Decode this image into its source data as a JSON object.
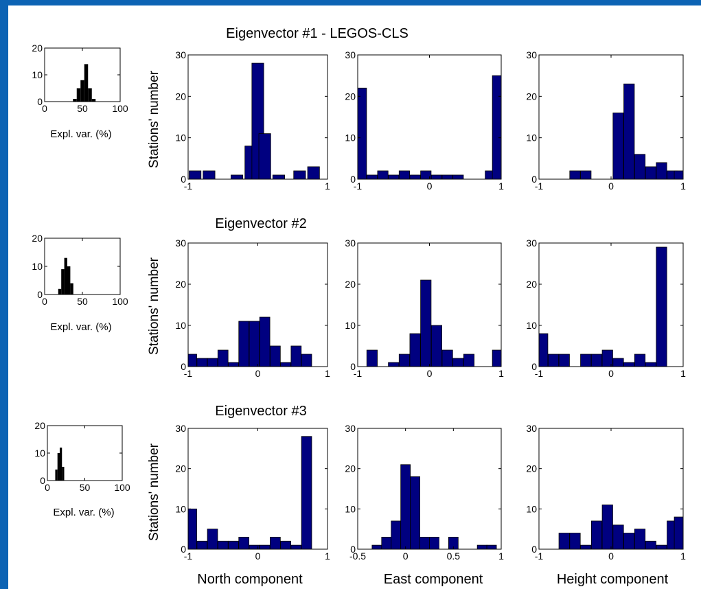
{
  "colors": {
    "bar": "#000080",
    "small_bar": "#000000",
    "axis": "#000000",
    "frame": "#0c63b4",
    "background": "#ffffff"
  },
  "row_titles": [
    "Eigenvector #1 - LEGOS-CLS",
    "Eigenvector #2",
    "Eigenvector #3"
  ],
  "shared_ylabel": "Stations' number",
  "column_xlabels": [
    "North component",
    "East component",
    "Height component"
  ],
  "chart_data": [
    {
      "type": "bar",
      "row": 1,
      "column": "explained variance",
      "xlabel": "Expl. var. (%)",
      "xlim": [
        0,
        100
      ],
      "ylim": [
        0,
        20
      ],
      "xticks": [
        0,
        50,
        100
      ],
      "yticks": [
        0,
        10,
        20
      ],
      "bin_width": 5,
      "x": [
        40,
        45,
        50,
        55,
        60,
        65
      ],
      "values": [
        1,
        5,
        8,
        14,
        5,
        1
      ]
    },
    {
      "type": "bar",
      "row": 1,
      "column": "North component",
      "title": "Eigenvector #1 - LEGOS-CLS",
      "ylabel": "Stations' number",
      "xlim": [
        -1,
        1
      ],
      "ylim": [
        0,
        30
      ],
      "xticks": [
        -1,
        1
      ],
      "yticks": [
        0,
        10,
        20,
        30
      ],
      "x": [
        -0.9,
        -0.7,
        -0.5,
        -0.3,
        -0.1,
        0.0,
        0.1,
        0.3,
        0.5,
        0.6,
        0.8
      ],
      "values": [
        2,
        2,
        0,
        1,
        8,
        28,
        11,
        1,
        0,
        2,
        3
      ]
    },
    {
      "type": "bar",
      "row": 1,
      "column": "East component",
      "xlim": [
        -1,
        1
      ],
      "ylim": [
        0,
        30
      ],
      "xticks": [
        -1,
        0,
        1
      ],
      "yticks": [
        0,
        10,
        20,
        30
      ],
      "x": [
        -0.95,
        -0.8,
        -0.65,
        -0.5,
        -0.35,
        -0.2,
        -0.05,
        0.1,
        0.25,
        0.4,
        0.55,
        0.7,
        0.85,
        0.95
      ],
      "values": [
        22,
        1,
        2,
        1,
        2,
        1,
        2,
        1,
        1,
        1,
        0,
        0,
        2,
        25
      ]
    },
    {
      "type": "bar",
      "row": 1,
      "column": "Height component",
      "xlim": [
        -1,
        1
      ],
      "ylim": [
        0,
        30
      ],
      "xticks": [
        -1,
        0,
        1
      ],
      "yticks": [
        0,
        10,
        20,
        30
      ],
      "x": [
        -0.95,
        -0.8,
        -0.65,
        -0.5,
        -0.35,
        -0.2,
        -0.05,
        0.1,
        0.25,
        0.4,
        0.55,
        0.7,
        0.85,
        0.95
      ],
      "values": [
        0,
        0,
        0,
        2,
        2,
        0,
        0,
        16,
        23,
        6,
        3,
        4,
        2,
        2
      ]
    },
    {
      "type": "bar",
      "row": 2,
      "column": "explained variance",
      "xlabel": "Expl. var. (%)",
      "xlim": [
        0,
        100
      ],
      "ylim": [
        0,
        20
      ],
      "xticks": [
        0,
        50,
        100
      ],
      "yticks": [
        0,
        10,
        20
      ],
      "bin_width": 4,
      "x": [
        20,
        24,
        28,
        32,
        36
      ],
      "values": [
        2,
        9,
        13,
        10,
        4
      ]
    },
    {
      "type": "bar",
      "row": 2,
      "column": "North component",
      "title": "Eigenvector #2",
      "ylabel": "Stations' number",
      "xlim": [
        -1,
        1
      ],
      "ylim": [
        0,
        30
      ],
      "xticks": [
        -1,
        0,
        1
      ],
      "yticks": [
        0,
        10,
        20,
        30
      ],
      "x": [
        -0.95,
        -0.8,
        -0.65,
        -0.5,
        -0.35,
        -0.2,
        -0.05,
        0.1,
        0.25,
        0.4,
        0.55,
        0.7,
        0.85,
        0.95
      ],
      "values": [
        3,
        2,
        2,
        4,
        1,
        11,
        11,
        12,
        5,
        1,
        5,
        3,
        0,
        0
      ]
    },
    {
      "type": "bar",
      "row": 2,
      "column": "East component",
      "xlim": [
        -1,
        1
      ],
      "ylim": [
        0,
        30
      ],
      "xticks": [
        -1,
        0,
        1
      ],
      "yticks": [
        0,
        10,
        20,
        30
      ],
      "x": [
        -0.95,
        -0.8,
        -0.65,
        -0.5,
        -0.35,
        -0.2,
        -0.05,
        0.1,
        0.25,
        0.4,
        0.55,
        0.7,
        0.85,
        0.95
      ],
      "values": [
        0,
        4,
        0,
        1,
        3,
        8,
        21,
        10,
        4,
        2,
        3,
        0,
        0,
        4
      ]
    },
    {
      "type": "bar",
      "row": 2,
      "column": "Height component",
      "xlim": [
        -1,
        1
      ],
      "ylim": [
        0,
        30
      ],
      "xticks": [
        -1,
        0,
        1
      ],
      "yticks": [
        0,
        10,
        20,
        30
      ],
      "x": [
        -0.95,
        -0.8,
        -0.65,
        -0.5,
        -0.35,
        -0.2,
        -0.05,
        0.1,
        0.25,
        0.4,
        0.55,
        0.7,
        0.85,
        0.95
      ],
      "values": [
        8,
        3,
        3,
        0,
        3,
        3,
        4,
        2,
        1,
        3,
        1,
        29,
        0,
        0
      ]
    },
    {
      "type": "bar",
      "row": 3,
      "column": "explained variance",
      "xlabel": "Expl. var. (%)",
      "xlim": [
        0,
        100
      ],
      "ylim": [
        0,
        20
      ],
      "xticks": [
        0,
        50,
        100
      ],
      "yticks": [
        0,
        10,
        20
      ],
      "bin_width": 3,
      "x": [
        12,
        15,
        18,
        21
      ],
      "values": [
        4,
        10,
        12,
        5
      ]
    },
    {
      "type": "bar",
      "row": 3,
      "column": "North component",
      "title": "Eigenvector #3",
      "ylabel": "Stations' number",
      "xlabel": "North component",
      "xlim": [
        -1,
        1
      ],
      "ylim": [
        0,
        30
      ],
      "xticks": [
        -1,
        0,
        1
      ],
      "yticks": [
        0,
        10,
        20,
        30
      ],
      "x": [
        -0.95,
        -0.8,
        -0.65,
        -0.5,
        -0.35,
        -0.2,
        -0.05,
        0.1,
        0.25,
        0.4,
        0.55,
        0.7,
        0.85,
        0.95
      ],
      "values": [
        10,
        2,
        5,
        2,
        2,
        3,
        1,
        1,
        3,
        2,
        1,
        28,
        0,
        0
      ]
    },
    {
      "type": "bar",
      "row": 3,
      "column": "East component",
      "xlabel": "East component",
      "xlim": [
        -0.5,
        1
      ],
      "ylim": [
        0,
        30
      ],
      "xticks": [
        -0.5,
        0,
        0.5,
        1
      ],
      "yticks": [
        0,
        10,
        20,
        30
      ],
      "x": [
        -0.3,
        -0.2,
        -0.1,
        0.0,
        0.1,
        0.2,
        0.3,
        0.4,
        0.5,
        0.6,
        0.7,
        0.8,
        0.9
      ],
      "values": [
        1,
        3,
        7,
        21,
        18,
        3,
        3,
        0,
        3,
        0,
        0,
        1,
        1
      ]
    },
    {
      "type": "bar",
      "row": 3,
      "column": "Height component",
      "xlabel": "Height component",
      "xlim": [
        -1,
        1
      ],
      "ylim": [
        0,
        30
      ],
      "xticks": [
        -1,
        0,
        1
      ],
      "yticks": [
        0,
        10,
        20,
        30
      ],
      "x": [
        -0.95,
        -0.8,
        -0.65,
        -0.5,
        -0.35,
        -0.2,
        -0.05,
        0.1,
        0.25,
        0.4,
        0.55,
        0.7,
        0.85,
        0.95
      ],
      "values": [
        0,
        0,
        4,
        4,
        1,
        7,
        11,
        6,
        4,
        5,
        2,
        1,
        7,
        8
      ]
    }
  ]
}
